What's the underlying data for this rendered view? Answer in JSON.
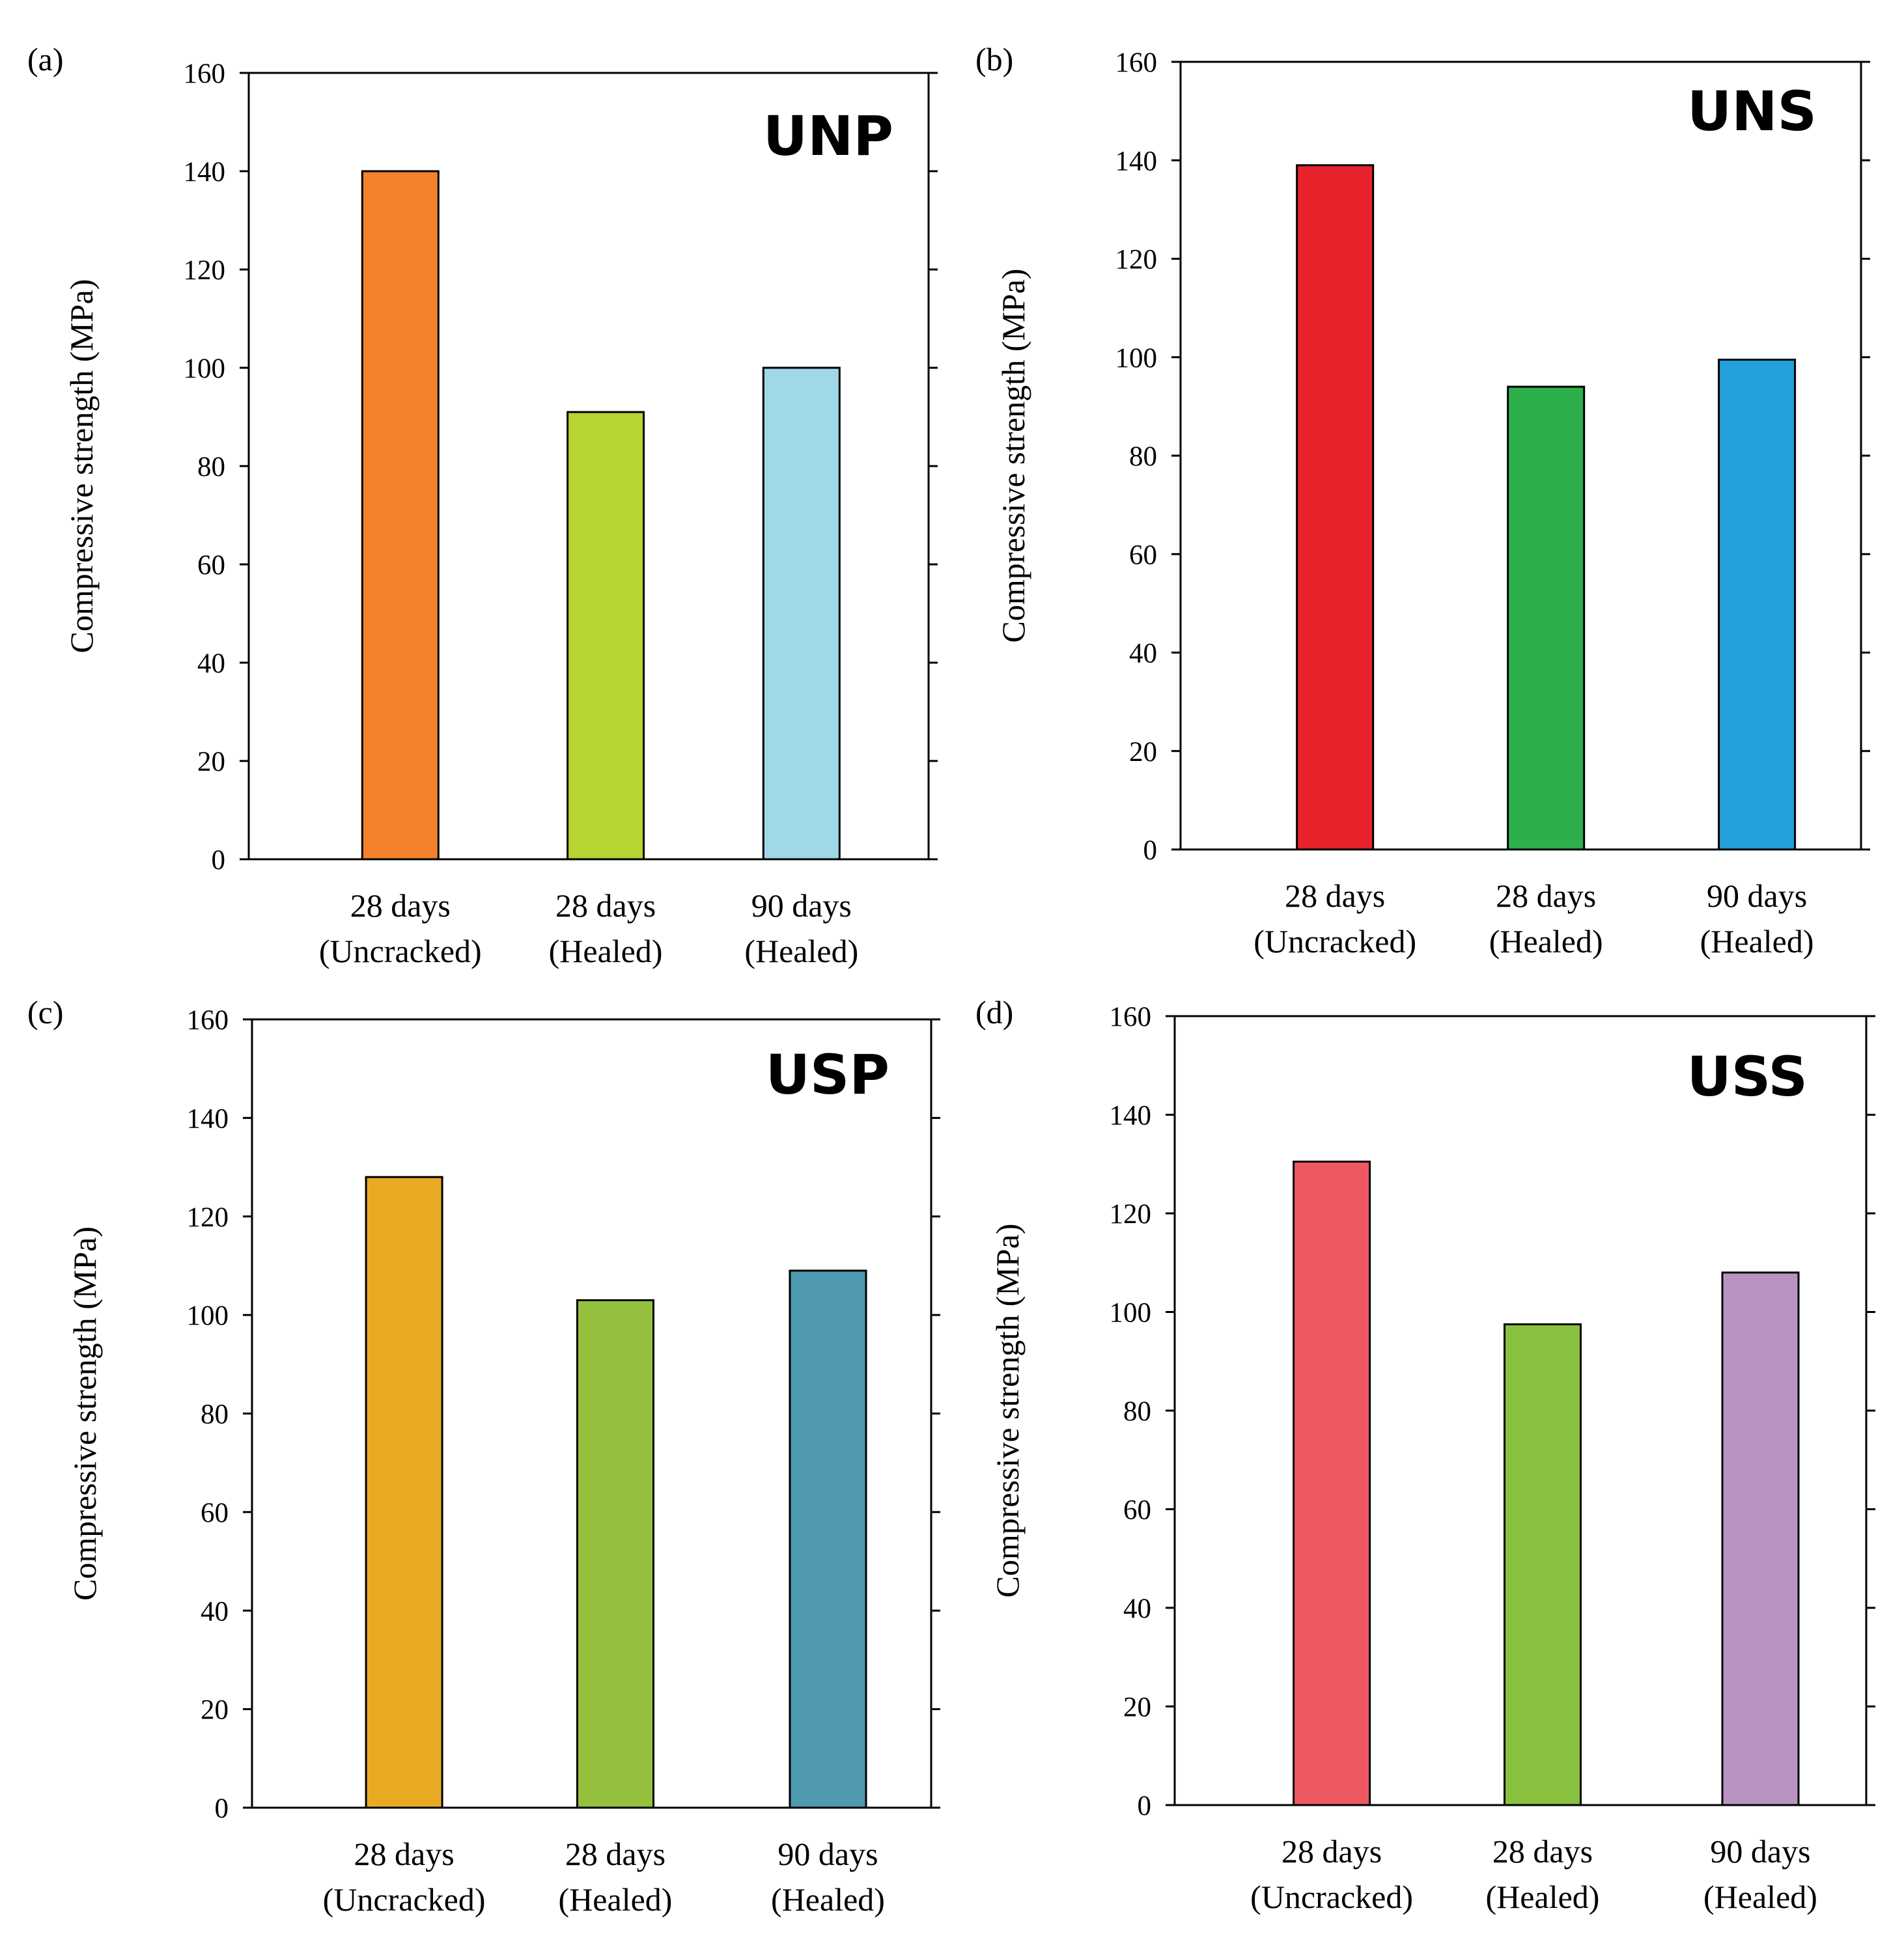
{
  "chart_data": [
    {
      "type": "bar",
      "panel_label": "(a)",
      "title": "UNP",
      "ylabel": "Compressive strength (MPa)",
      "ylim": [
        0,
        160
      ],
      "yticks": [
        0,
        20,
        40,
        60,
        80,
        100,
        120,
        140,
        160
      ],
      "categories": [
        {
          "line1": "28 days",
          "line2": "(Uncracked)"
        },
        {
          "line1": "28 days",
          "line2": "(Healed)"
        },
        {
          "line1": "90 days",
          "line2": "(Healed)"
        }
      ],
      "values": [
        140,
        91,
        100
      ],
      "colors": [
        "#F4812C",
        "#B6D432",
        "#A0D8EA"
      ]
    },
    {
      "type": "bar",
      "panel_label": "(b)",
      "title": "UNS",
      "ylabel": "Compressive strength (MPa)",
      "ylim": [
        0,
        160
      ],
      "yticks": [
        0,
        20,
        40,
        60,
        80,
        100,
        120,
        140,
        160
      ],
      "categories": [
        {
          "line1": "28 days",
          "line2": "(Uncracked)"
        },
        {
          "line1": "28 days",
          "line2": "(Healed)"
        },
        {
          "line1": "90 days",
          "line2": "(Healed)"
        }
      ],
      "values": [
        139,
        94,
        99.5
      ],
      "colors": [
        "#E8222A",
        "#2DB04B",
        "#239FD9"
      ]
    },
    {
      "type": "bar",
      "panel_label": "(c)",
      "title": "USP",
      "ylabel": "Compressive strength (MPa)",
      "ylim": [
        0,
        160
      ],
      "yticks": [
        0,
        20,
        40,
        60,
        80,
        100,
        120,
        140,
        160
      ],
      "categories": [
        {
          "line1": "28 days",
          "line2": "(Uncracked)"
        },
        {
          "line1": "28 days",
          "line2": "(Healed)"
        },
        {
          "line1": "90 days",
          "line2": "(Healed)"
        }
      ],
      "values": [
        128,
        103,
        109
      ],
      "colors": [
        "#E8A923",
        "#94C03D",
        "#4F9AB1"
      ]
    },
    {
      "type": "bar",
      "panel_label": "(d)",
      "title": "USS",
      "ylabel": "Compressive strength (MPa)",
      "ylim": [
        0,
        160
      ],
      "yticks": [
        0,
        20,
        40,
        60,
        80,
        100,
        120,
        140,
        160
      ],
      "categories": [
        {
          "line1": "28 days",
          "line2": "(Uncracked)"
        },
        {
          "line1": "28 days",
          "line2": "(Healed)"
        },
        {
          "line1": "90 days",
          "line2": "(Healed)"
        }
      ],
      "values": [
        130.5,
        97.5,
        108
      ],
      "colors": [
        "#EC5760",
        "#88C13F",
        "#B893C1"
      ]
    }
  ]
}
